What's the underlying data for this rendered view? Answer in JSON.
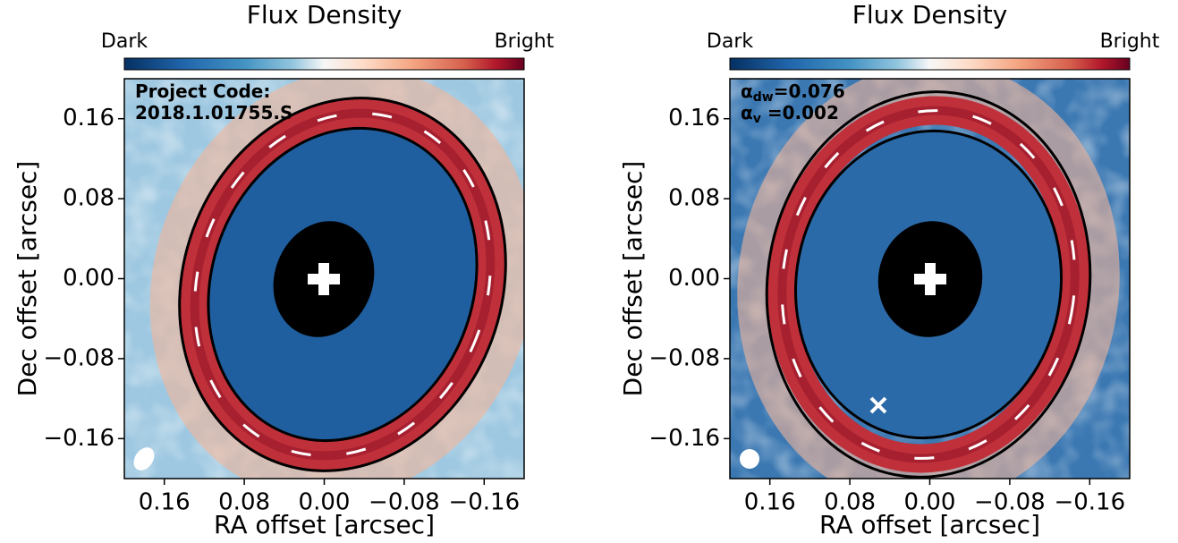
{
  "chart_data": [
    {
      "type": "map",
      "title": "Flux Density",
      "colorbar_labels": [
        "Dark",
        "Bright"
      ],
      "xlabel": "RA offset [arcsec]",
      "ylabel": "Dec offset [arcsec]",
      "xlim": [
        0.2,
        -0.2
      ],
      "ylim": [
        -0.2,
        0.2
      ],
      "xticks": [
        0.16,
        0.08,
        {
          "value": 0,
          "label": "0.00"
        },
        {
          "value": -0.08,
          "label": "−0.08"
        },
        {
          "value": -0.16,
          "label": "−0.16"
        }
      ],
      "yticks": [
        {
          "value": -0.16,
          "label": "−0.16"
        },
        {
          "value": -0.08,
          "label": "−0.08"
        },
        {
          "value": 0,
          "label": "0.00"
        },
        0.08,
        0.16
      ],
      "annotations": [
        {
          "text": "Project Code:"
        },
        {
          "text": "2018.1.01755.S"
        }
      ]
    },
    {
      "type": "map",
      "title": "Flux Density",
      "colorbar_labels": [
        "Dark",
        "Bright"
      ],
      "xlabel": "RA offset [arcsec]",
      "ylabel": "Dec offset [arcsec]",
      "xlim": [
        0.2,
        -0.2
      ],
      "ylim": [
        -0.2,
        0.2
      ],
      "xticks": [
        0.16,
        0.08,
        {
          "value": 0,
          "label": "0.00"
        },
        {
          "value": -0.08,
          "label": "−0.08"
        },
        {
          "value": -0.16,
          "label": "−0.16"
        }
      ],
      "yticks": [
        {
          "value": -0.16,
          "label": "−0.16"
        },
        {
          "value": -0.08,
          "label": "−0.08"
        },
        {
          "value": 0,
          "label": "0.00"
        },
        0.08,
        0.16
      ],
      "annotations": [
        {
          "text": "α",
          "sub": "dw",
          "rest": "=0.076"
        },
        {
          "text": "α",
          "sub": "v",
          "rest": " =0.002"
        }
      ]
    }
  ]
}
